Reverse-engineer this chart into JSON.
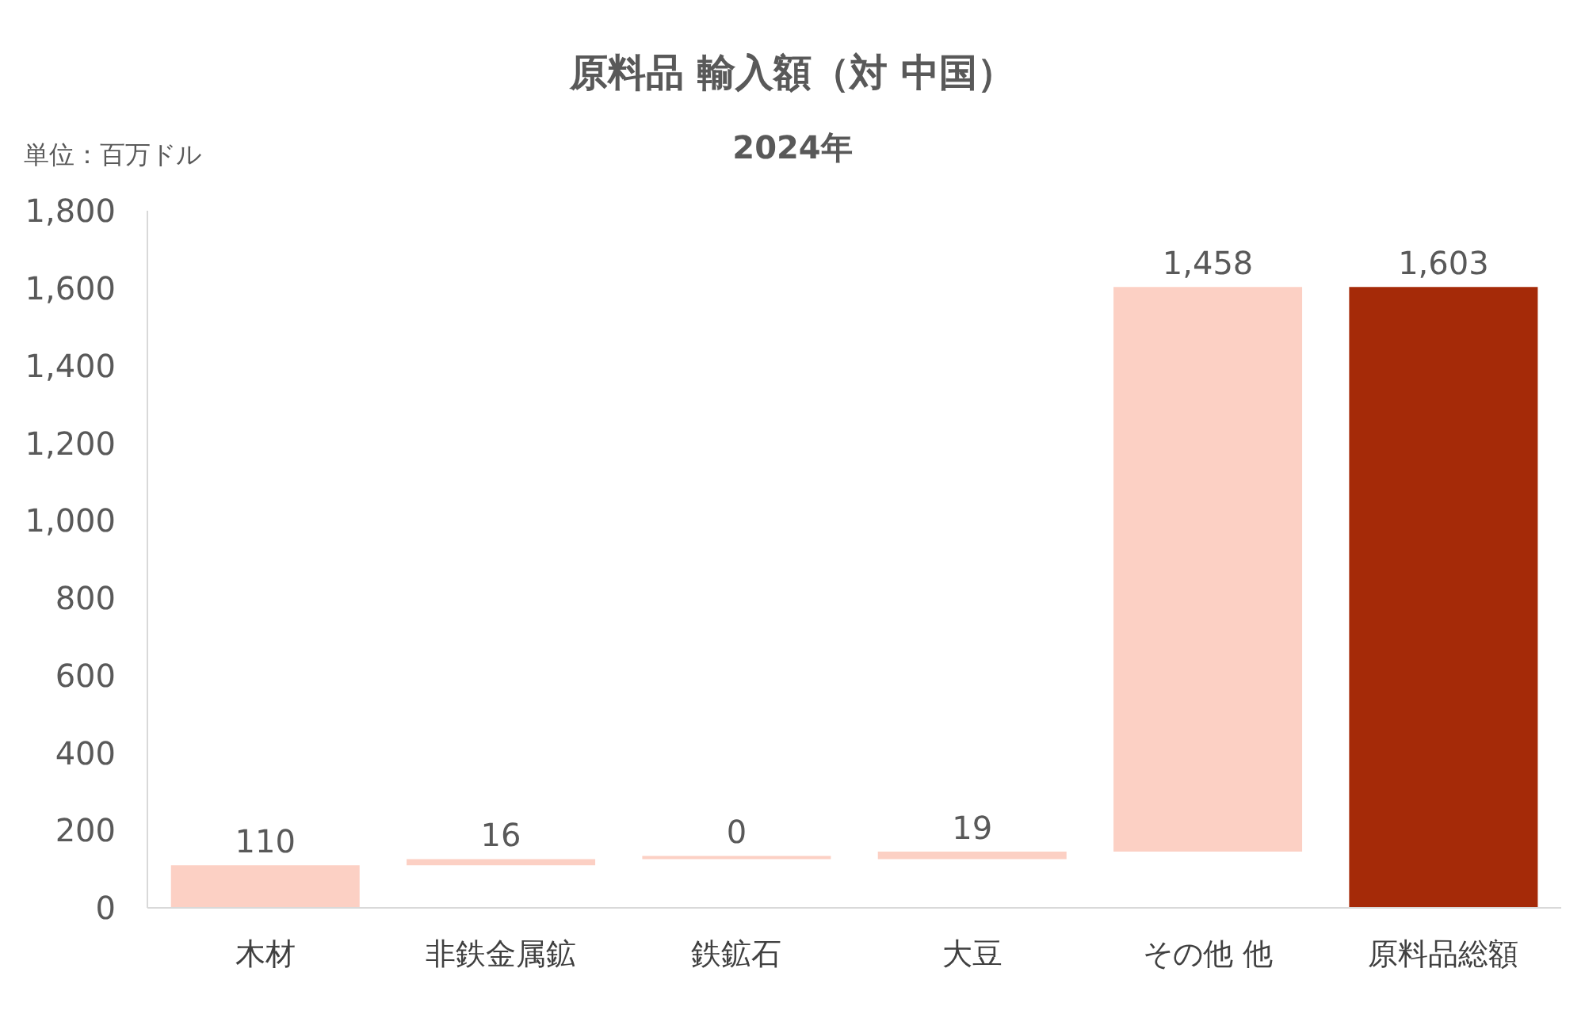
{
  "chart_data": {
    "type": "bar",
    "title": "原料品 輸入額（対 中国）",
    "subtitle": "2024年",
    "ylabel": "単位：百万ドル",
    "categories": [
      "木材",
      "非鉄金属鉱",
      "鉄鉱石",
      "大豆",
      "その他 他",
      "原料品総額"
    ],
    "values": [
      110,
      16,
      0,
      19,
      1458,
      1603
    ],
    "value_labels": [
      "110",
      "16",
      "0",
      "19",
      "1,458",
      "1,603"
    ],
    "base": [
      0,
      110,
      126,
      126,
      145,
      0
    ],
    "colors": [
      "#fcd0c4",
      "#fcd0c4",
      "#fcd0c4",
      "#fcd0c4",
      "#fcd0c4",
      "#a52a08"
    ],
    "ylim": [
      0,
      1800
    ],
    "yticks": [
      0,
      200,
      400,
      600,
      800,
      {
        "value": 1000,
        "label": "1,000"
      },
      {
        "value": 1200,
        "label": "1,200"
      },
      {
        "value": 1400,
        "label": "1,400"
      },
      {
        "value": 1600,
        "label": "1,600"
      },
      {
        "value": 1800,
        "label": "1,800"
      }
    ],
    "grid": false
  }
}
